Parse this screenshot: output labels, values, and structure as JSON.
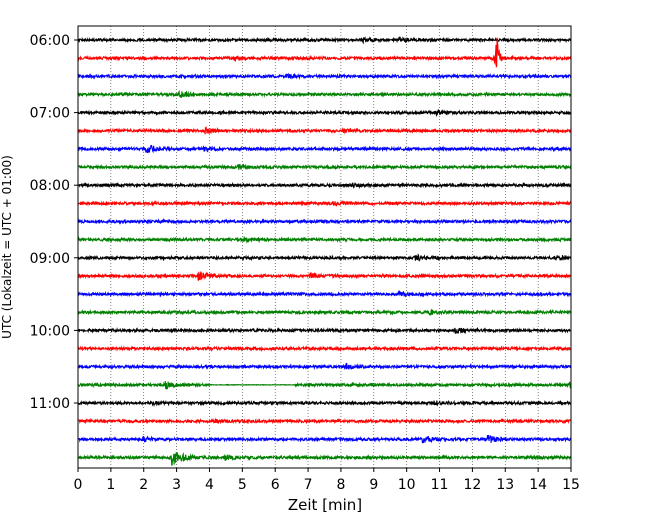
{
  "chart_data": {
    "type": "line",
    "title": "",
    "xlabel": "Zeit  [min]",
    "ylabel": "UTC (Lokalzeit = UTC + 01:00)",
    "xlim": [
      0,
      15
    ],
    "x_ticks": [
      "0",
      "1",
      "2",
      "3",
      "4",
      "5",
      "6",
      "7",
      "8",
      "9",
      "10",
      "11",
      "12",
      "13",
      "14",
      "15"
    ],
    "y_ticks": [
      "06:00",
      "07:00",
      "08:00",
      "09:00",
      "10:00",
      "11:00"
    ],
    "grid": "vertical dotted",
    "trace_interval_min": 15,
    "trace_colors": [
      "#000000",
      "#ff0000",
      "#0000ff",
      "#008000"
    ],
    "traces": [
      {
        "start": "06:00",
        "events": [
          [
            8.7,
            0.5
          ],
          [
            9.8,
            0.5
          ]
        ]
      },
      {
        "start": "06:15",
        "events": [
          [
            4.8,
            0.5
          ],
          [
            12.75,
            6.5
          ]
        ]
      },
      {
        "start": "06:30",
        "events": [
          [
            6.3,
            0.5
          ]
        ]
      },
      {
        "start": "06:45",
        "events": [
          [
            3.1,
            1.0
          ]
        ]
      },
      {
        "start": "07:00",
        "events": [
          [
            10.9,
            0.5
          ]
        ]
      },
      {
        "start": "07:15",
        "events": [
          [
            3.9,
            0.8
          ],
          [
            8.1,
            0.3
          ]
        ]
      },
      {
        "start": "07:30",
        "events": [
          [
            2.1,
            1.3
          ],
          [
            3.8,
            0.5
          ]
        ]
      },
      {
        "start": "07:45",
        "events": [
          [
            4.9,
            0.6
          ]
        ]
      },
      {
        "start": "08:00",
        "events": [
          [
            8.4,
            0.4
          ]
        ]
      },
      {
        "start": "08:15",
        "events": [
          [
            7.8,
            0.4
          ]
        ]
      },
      {
        "start": "08:30",
        "events": [
          [
            2.5,
            0.3
          ]
        ]
      },
      {
        "start": "08:45",
        "events": [
          [
            5.1,
            0.6
          ]
        ]
      },
      {
        "start": "09:00",
        "events": [
          [
            10.3,
            0.7
          ],
          [
            14.7,
            0.6
          ]
        ]
      },
      {
        "start": "09:15",
        "events": [
          [
            3.7,
            1.1
          ],
          [
            7.1,
            0.6
          ]
        ]
      },
      {
        "start": "09:30",
        "events": [
          [
            9.8,
            0.5
          ]
        ]
      },
      {
        "start": "09:45",
        "events": [
          [
            10.7,
            0.5
          ]
        ]
      },
      {
        "start": "10:00",
        "events": [
          [
            11.5,
            0.8
          ]
        ]
      },
      {
        "start": "10:15",
        "events": [
          [
            5.4,
            0.3
          ]
        ]
      },
      {
        "start": "10:30",
        "events": [
          [
            8.2,
            0.6
          ]
        ]
      },
      {
        "start": "10:45",
        "events": [
          [
            2.7,
            0.9
          ],
          [
            15.0,
            0.8
          ]
        ],
        "gap": [
          4.0,
          6.6
        ]
      },
      {
        "start": "11:00",
        "events": [
          [
            10.8,
            0.6
          ],
          [
            2.3,
            0.3
          ]
        ]
      },
      {
        "start": "11:15",
        "events": [
          [
            4.2,
            0.3
          ]
        ]
      },
      {
        "start": "11:30",
        "events": [
          [
            2.0,
            0.6
          ],
          [
            10.5,
            0.8
          ],
          [
            12.5,
            1.0
          ]
        ]
      },
      {
        "start": "11:45",
        "events": [
          [
            2.9,
            2.2
          ],
          [
            4.5,
            0.8
          ]
        ]
      }
    ]
  }
}
